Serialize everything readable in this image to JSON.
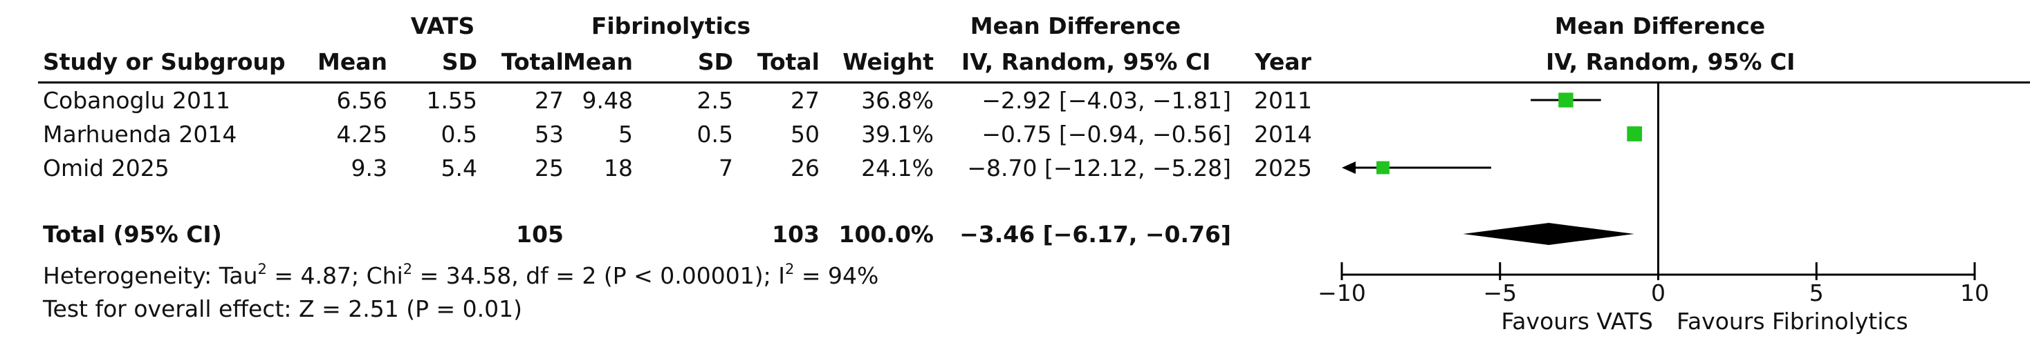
{
  "header": {
    "group1": "VATS",
    "group2": "Fibrinolytics",
    "effect_group": "Mean Difference",
    "plot_group": "Mean Difference",
    "col_study": "Study or Subgroup",
    "col_mean": "Mean",
    "col_sd": "SD",
    "col_total": "Total",
    "col_weight": "Weight",
    "col_effect": "IV, Random, 95% CI",
    "col_year": "Year",
    "col_plot": "IV, Random, 95% CI"
  },
  "studies": [
    {
      "name": "Cobanoglu 2011",
      "m1": "6.56",
      "sd1": "1.55",
      "n1": "27",
      "m2": "9.48",
      "sd2": "2.5",
      "n2": "27",
      "weight": "36.8%",
      "ci_text": "−2.92 [−4.03, −1.81]",
      "year": "2011"
    },
    {
      "name": "Marhuenda 2014",
      "m1": "4.25",
      "sd1": "0.5",
      "n1": "53",
      "m2": "5",
      "sd2": "0.5",
      "n2": "50",
      "weight": "39.1%",
      "ci_text": "−0.75 [−0.94, −0.56]",
      "year": "2014"
    },
    {
      "name": "Omid 2025",
      "m1": "9.3",
      "sd1": "5.4",
      "n1": "25",
      "m2": "18",
      "sd2": "7",
      "n2": "26",
      "weight": "24.1%",
      "ci_text": "−8.70 [−12.12, −5.28]",
      "year": "2025"
    }
  ],
  "total": {
    "label": "Total (95% CI)",
    "n1": "105",
    "n2": "103",
    "weight": "100.0%",
    "ci_text": "−3.46 [−6.17, −0.76]"
  },
  "heterogeneity": {
    "prefix": "Heterogeneity: Tau",
    "tau_sup": "2",
    "mid1": " = 4.87; Chi",
    "chi_sup": "2",
    "mid2": " = 34.58, df = 2 (P < 0.00001); I",
    "i_sup": "2",
    "suffix": " = 94%"
  },
  "overall_test": "Test for overall effect: Z = 2.51 (P = 0.01)",
  "axis": {
    "left_label": "Favours VATS",
    "right_label": "Favours Fibrinolytics"
  },
  "colors": {
    "marker": "#1fc41f",
    "diamond": "#000000",
    "line": "#000000"
  },
  "chart_data": {
    "type": "forest",
    "measure": "Mean Difference (IV, Random, 95% CI)",
    "xlim": [
      -10,
      10
    ],
    "ticks": [
      -10,
      -5,
      0,
      5,
      10
    ],
    "tick_labels": [
      "−10",
      "−5",
      "0",
      "5",
      "10"
    ],
    "studies": [
      {
        "name": "Cobanoglu 2011",
        "est": -2.92,
        "lo": -4.03,
        "hi": -1.81,
        "weight": 36.8
      },
      {
        "name": "Marhuenda 2014",
        "est": -0.75,
        "lo": -0.94,
        "hi": -0.56,
        "weight": 39.1
      },
      {
        "name": "Omid 2025",
        "est": -8.7,
        "lo": -12.12,
        "hi": -5.28,
        "weight": 24.1
      }
    ],
    "pooled": {
      "est": -3.46,
      "lo": -6.17,
      "hi": -0.76
    }
  }
}
